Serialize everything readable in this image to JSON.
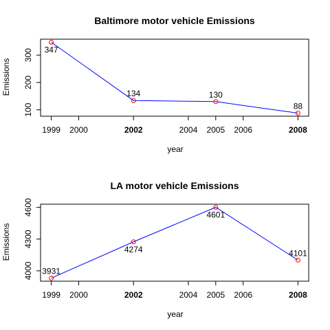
{
  "chart_data": [
    {
      "type": "line",
      "title": "Baltimore motor vehicle Emissions",
      "xlabel": "year",
      "ylabel": "Emissions",
      "x": [
        1999,
        2002,
        2005,
        2008
      ],
      "values": [
        347,
        134,
        130,
        88
      ],
      "data_labels": [
        "347",
        "134",
        "130",
        "88"
      ],
      "xlim": [
        1999,
        2008
      ],
      "ylim": [
        88,
        347
      ],
      "x_ticks": [
        {
          "value": 1999,
          "label": "1999",
          "bold": false
        },
        {
          "value": 2000,
          "label": "2000",
          "bold": false
        },
        {
          "value": 2002,
          "label": "2002",
          "bold": true
        },
        {
          "value": 2004,
          "label": "2004",
          "bold": false
        },
        {
          "value": 2005,
          "label": "2005",
          "bold": false
        },
        {
          "value": 2006,
          "label": "2006",
          "bold": false
        },
        {
          "value": 2008,
          "label": "2008",
          "bold": true
        }
      ],
      "y_ticks": [
        {
          "value": 100,
          "label": "100"
        },
        {
          "value": 200,
          "label": "200"
        },
        {
          "value": 300,
          "label": "300"
        }
      ],
      "label_positions": [
        "below",
        "above",
        "above",
        "above"
      ],
      "line_color": "#0000ff",
      "marker_color": "#ff0000",
      "grid": false
    },
    {
      "type": "line",
      "title": "LA motor vehicle Emissions",
      "xlabel": "year",
      "ylabel": "Emissions",
      "x": [
        1999,
        2002,
        2005,
        2008
      ],
      "values": [
        3931,
        4274,
        4601,
        4101
      ],
      "data_labels": [
        "3931",
        "4274",
        "4601",
        "4101"
      ],
      "xlim": [
        1999,
        2008
      ],
      "ylim": [
        3931,
        4601
      ],
      "x_ticks": [
        {
          "value": 1999,
          "label": "1999",
          "bold": false
        },
        {
          "value": 2000,
          "label": "2000",
          "bold": false
        },
        {
          "value": 2002,
          "label": "2002",
          "bold": true
        },
        {
          "value": 2004,
          "label": "2004",
          "bold": false
        },
        {
          "value": 2005,
          "label": "2005",
          "bold": false
        },
        {
          "value": 2006,
          "label": "2006",
          "bold": false
        },
        {
          "value": 2008,
          "label": "2008",
          "bold": true
        }
      ],
      "y_ticks": [
        {
          "value": 4000,
          "label": "4000"
        },
        {
          "value": 4300,
          "label": "4300"
        },
        {
          "value": 4600,
          "label": "4600"
        }
      ],
      "label_positions": [
        "above",
        "below",
        "below",
        "above"
      ],
      "line_color": "#0000ff",
      "marker_color": "#ff0000",
      "grid": false
    }
  ]
}
